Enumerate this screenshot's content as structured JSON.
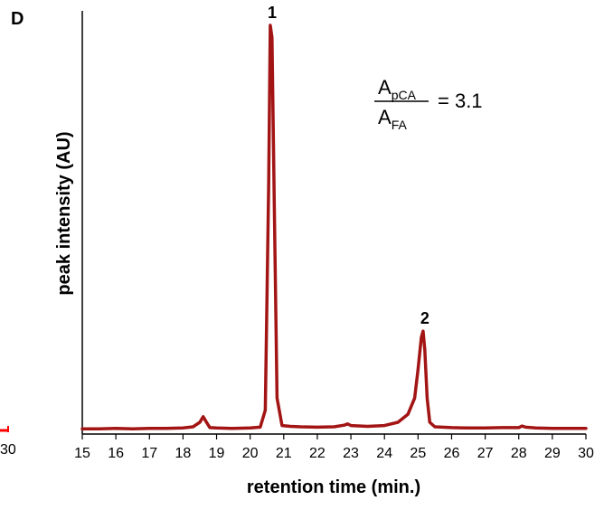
{
  "panel_label": "D",
  "stray_left_tick_label": "30",
  "chart_data": {
    "type": "line",
    "title": "",
    "xlabel": "retention time (min.)",
    "ylabel": "peak intensity (AU)",
    "xlim": [
      15,
      30
    ],
    "ylim": [
      0,
      1
    ],
    "x_ticks": [
      "15",
      "16",
      "17",
      "18",
      "19",
      "20",
      "21",
      "22",
      "23",
      "24",
      "25",
      "26",
      "27",
      "28",
      "29",
      "30"
    ],
    "grid": false,
    "legend": "none",
    "series": [
      {
        "color": "#a31515",
        "x": [
          15.0,
          15.5,
          16.0,
          16.5,
          17.0,
          17.5,
          18.0,
          18.3,
          18.5,
          18.6,
          18.7,
          18.8,
          19.0,
          19.5,
          20.0,
          20.3,
          20.45,
          20.55,
          20.6,
          20.65,
          20.72,
          20.8,
          20.95,
          21.2,
          21.5,
          22.0,
          22.5,
          22.8,
          22.9,
          23.0,
          23.5,
          24.0,
          24.4,
          24.7,
          24.9,
          25.0,
          25.1,
          25.15,
          25.2,
          25.27,
          25.35,
          25.5,
          26.0,
          26.5,
          27.0,
          27.5,
          28.0,
          28.1,
          28.2,
          28.5,
          29.0,
          29.5,
          30.0
        ],
        "y": [
          0.004,
          0.004,
          0.005,
          0.004,
          0.005,
          0.005,
          0.006,
          0.009,
          0.02,
          0.034,
          0.02,
          0.007,
          0.006,
          0.005,
          0.006,
          0.008,
          0.05,
          0.6,
          1.0,
          0.97,
          0.55,
          0.08,
          0.012,
          0.01,
          0.009,
          0.008,
          0.009,
          0.013,
          0.016,
          0.012,
          0.01,
          0.012,
          0.02,
          0.04,
          0.08,
          0.15,
          0.23,
          0.245,
          0.2,
          0.08,
          0.02,
          0.009,
          0.007,
          0.006,
          0.006,
          0.007,
          0.007,
          0.011,
          0.008,
          0.006,
          0.005,
          0.005,
          0.005
        ]
      }
    ],
    "annotations": [
      {
        "text": "1",
        "x": 20.6
      },
      {
        "text": "2",
        "x": 25.15
      }
    ],
    "ratio": {
      "numerator_base": "A",
      "numerator_sub": "pCA",
      "denominator_base": "A",
      "denominator_sub": "FA",
      "equals_text": "= 3.1"
    },
    "stray_red_mark_color": "#ff0000"
  }
}
